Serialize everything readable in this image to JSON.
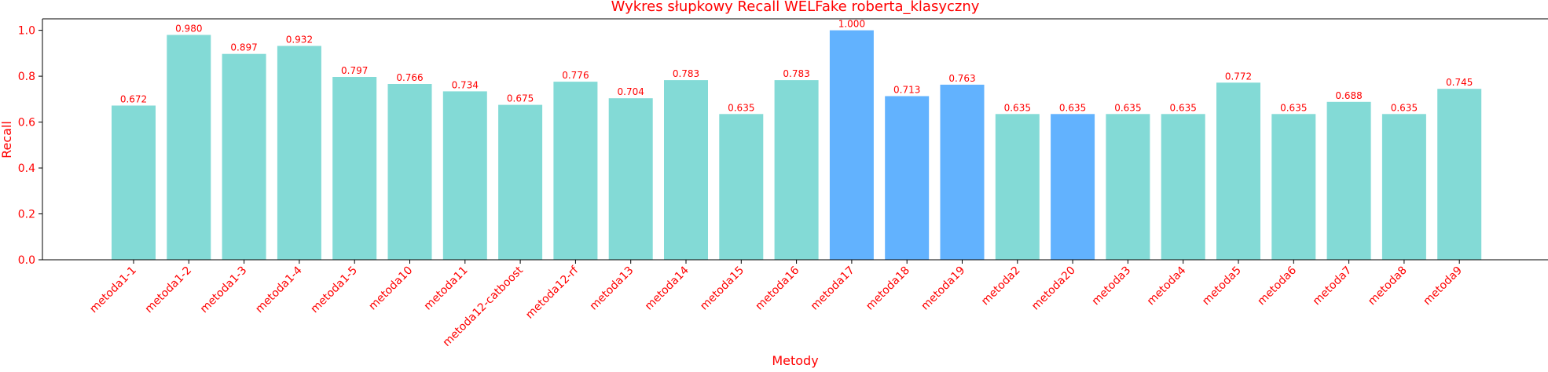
{
  "chart_data": {
    "type": "bar",
    "title": "Wykres słupkowy Recall WELFake roberta_klasyczny",
    "xlabel": "Metody",
    "ylabel": "Recall",
    "ylim": [
      0,
      1.05
    ],
    "yticks": [
      0.0,
      0.2,
      0.4,
      0.6,
      0.8,
      1.0
    ],
    "ytick_labels": [
      "0.0",
      "0.2",
      "0.4",
      "0.6",
      "0.8",
      "1.0"
    ],
    "grid": false,
    "categories": [
      "metoda1-1",
      "metoda1-2",
      "metoda1-3",
      "metoda1-4",
      "metoda1-5",
      "metoda10",
      "metoda11",
      "metoda12-catboost",
      "metoda12-rf",
      "metoda13",
      "metoda14",
      "metoda15",
      "metoda16",
      "metoda17",
      "metoda18",
      "metoda19",
      "metoda2",
      "metoda20",
      "metoda3",
      "metoda4",
      "metoda5",
      "metoda6",
      "metoda7",
      "metoda8",
      "metoda9"
    ],
    "values": [
      0.672,
      0.98,
      0.897,
      0.932,
      0.797,
      0.766,
      0.734,
      0.675,
      0.776,
      0.704,
      0.783,
      0.635,
      0.783,
      1.0,
      0.713,
      0.763,
      0.635,
      0.635,
      0.635,
      0.635,
      0.772,
      0.635,
      0.688,
      0.635,
      0.745
    ],
    "value_labels": [
      "0.672",
      "0.980",
      "0.897",
      "0.932",
      "0.797",
      "0.766",
      "0.734",
      "0.675",
      "0.776",
      "0.704",
      "0.783",
      "0.635",
      "0.783",
      "1.000",
      "0.713",
      "0.763",
      "0.635",
      "0.635",
      "0.635",
      "0.635",
      "0.772",
      "0.635",
      "0.688",
      "0.635",
      "0.745"
    ],
    "highlighted": [
      "metoda17",
      "metoda18",
      "metoda19",
      "metoda20"
    ],
    "colors": {
      "bar_default": "#83dad6",
      "bar_highlight": "#62b2fe",
      "text": "#ff0000",
      "axis": "#000000"
    }
  }
}
